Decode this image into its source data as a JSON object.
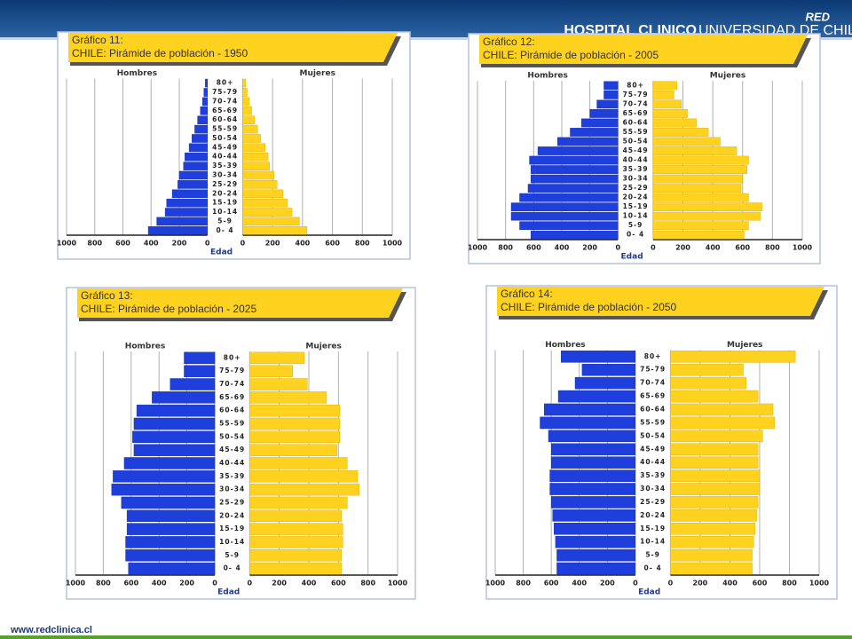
{
  "header": {
    "brand": "RED",
    "name": "HOSPITAL CLINICO",
    "university": "UNIVERSIDAD DE CHILE"
  },
  "footer": {
    "url": "www.redclinica.cl"
  },
  "chart_data": [
    {
      "type": "pyramid",
      "title": "Gráfico 11:",
      "subtitle": "CHILE: Pirámide de población - 1950",
      "x_label": "Edad",
      "categories": [
        "0- 4",
        "5-9",
        "10-14",
        "15-19",
        "20-24",
        "25-29",
        "30-34",
        "35-39",
        "40-44",
        "45-49",
        "50-54",
        "55-59",
        "60-64",
        "65-69",
        "70-74",
        "75-79",
        "80+"
      ],
      "series": [
        {
          "name": "Hombres",
          "color": "#1f3fdc",
          "values": [
            420,
            360,
            300,
            290,
            250,
            210,
            200,
            170,
            160,
            130,
            110,
            90,
            70,
            50,
            35,
            25,
            15
          ]
        },
        {
          "name": "Mujeres",
          "color": "#ffd21f",
          "values": [
            430,
            380,
            330,
            300,
            270,
            230,
            210,
            180,
            170,
            150,
            120,
            100,
            80,
            60,
            45,
            30,
            20
          ]
        }
      ],
      "xlim": [
        0,
        1000
      ],
      "xticks": [
        0,
        200,
        400,
        600,
        800,
        1000
      ],
      "grid": true
    },
    {
      "type": "pyramid",
      "title": "Gráfico 12:",
      "subtitle": "CHILE: Pirámide de población - 2005",
      "x_label": "Edad",
      "categories": [
        "0- 4",
        "5-9",
        "10-14",
        "15-19",
        "20-24",
        "25-29",
        "30-34",
        "35-39",
        "40-44",
        "45-49",
        "50-54",
        "55-59",
        "60-64",
        "65-69",
        "70-74",
        "75-79",
        "80+"
      ],
      "series": [
        {
          "name": "Hombres",
          "color": "#1f3fdc",
          "values": [
            620,
            700,
            760,
            760,
            700,
            640,
            620,
            620,
            630,
            570,
            430,
            340,
            260,
            200,
            150,
            100,
            100
          ]
        },
        {
          "name": "Mujeres",
          "color": "#ffd21f",
          "values": [
            610,
            640,
            720,
            730,
            640,
            590,
            600,
            630,
            640,
            560,
            450,
            370,
            290,
            230,
            190,
            140,
            160
          ]
        }
      ],
      "xlim": [
        0,
        1000
      ],
      "xticks": [
        0,
        200,
        400,
        600,
        800,
        1000
      ],
      "grid": true
    },
    {
      "type": "pyramid",
      "title": "Gráfico 13:",
      "subtitle": "CHILE: Pirámide de población - 2025",
      "x_label": "Edad",
      "categories": [
        "0- 4",
        "5-9",
        "10-14",
        "15-19",
        "20-24",
        "25-29",
        "30-34",
        "35-39",
        "40-44",
        "45-49",
        "50-54",
        "55-59",
        "60-64",
        "65-69",
        "70-74",
        "75-79",
        "80+"
      ],
      "series": [
        {
          "name": "Hombres",
          "color": "#1f3fdc",
          "values": [
            620,
            640,
            640,
            630,
            630,
            670,
            740,
            730,
            650,
            580,
            590,
            580,
            560,
            450,
            320,
            220,
            220
          ]
        },
        {
          "name": "Mujeres",
          "color": "#ffd21f",
          "values": [
            620,
            620,
            630,
            630,
            620,
            660,
            740,
            730,
            660,
            590,
            610,
            610,
            610,
            520,
            390,
            290,
            370
          ]
        }
      ],
      "xlim": [
        0,
        1000
      ],
      "xticks": [
        0,
        200,
        400,
        600,
        800,
        1000
      ],
      "grid": true
    },
    {
      "type": "pyramid",
      "title": "Gráfico 14:",
      "subtitle": "CHILE: Pirámide de población - 2050",
      "x_label": "Edad",
      "categories": [
        "0- 4",
        "5-9",
        "10-14",
        "15-19",
        "20-24",
        "25-29",
        "30-34",
        "35-39",
        "40-44",
        "45-49",
        "50-54",
        "55-59",
        "60-64",
        "65-69",
        "70-74",
        "75-79",
        "80+"
      ],
      "series": [
        {
          "name": "Hombres",
          "color": "#1f3fdc",
          "values": [
            560,
            560,
            570,
            580,
            590,
            600,
            610,
            610,
            600,
            600,
            620,
            680,
            650,
            550,
            430,
            380,
            530
          ]
        },
        {
          "name": "Mujeres",
          "color": "#ffd21f",
          "values": [
            550,
            550,
            560,
            570,
            580,
            590,
            600,
            600,
            590,
            590,
            620,
            700,
            690,
            590,
            510,
            490,
            840
          ]
        }
      ],
      "xlim": [
        0,
        1000
      ],
      "xticks": [
        0,
        200,
        400,
        600,
        800,
        1000
      ],
      "grid": true
    }
  ]
}
